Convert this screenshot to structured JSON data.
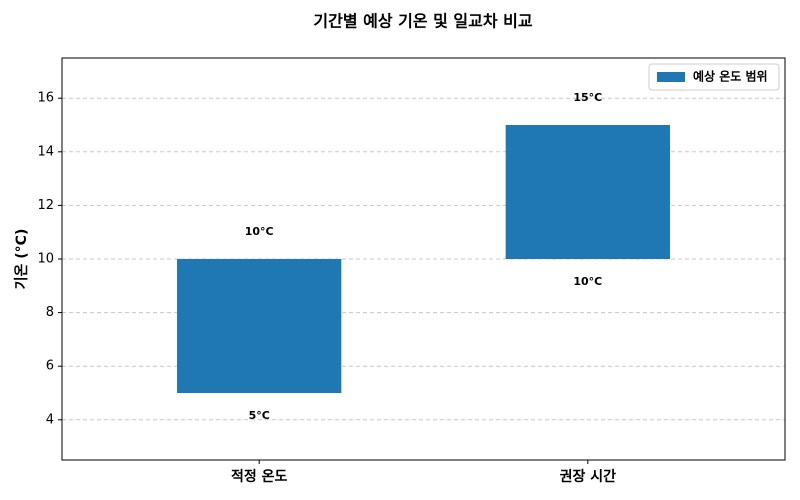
{
  "chart_data": {
    "type": "floating-bar",
    "title": "기간별 예상 기온 및 일교차 비교",
    "y_label": "기온 (°C)",
    "categories": [
      "적정 온도",
      "권장 시간"
    ],
    "series": [
      {
        "name": "예상 온도 범위",
        "color": "#1f77b4",
        "lows": [
          5,
          10
        ],
        "highs": [
          10,
          15
        ],
        "low_labels": [
          "5°C",
          "10°C"
        ],
        "high_labels": [
          "10°C",
          "15°C"
        ]
      }
    ],
    "ylim": [
      2.5,
      17.5
    ],
    "yticks": [
      4,
      6,
      8,
      10,
      12,
      14,
      16
    ],
    "grid": true,
    "legend": "upper right"
  }
}
